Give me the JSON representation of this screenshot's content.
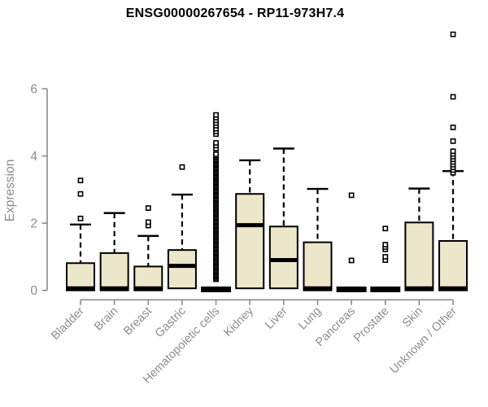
{
  "title": "ENSG00000267654 - RP11-973H7.4",
  "chart_data": {
    "type": "box",
    "title": "ENSG00000267654 - RP11-973H7.4",
    "xlabel": "",
    "ylabel": "Expression",
    "ylim": [
      0,
      6
    ],
    "yticks": [
      0,
      2,
      4,
      6
    ],
    "grid": false,
    "legend": "none",
    "categories": [
      "Bladder",
      "Brain",
      "Breast",
      "Gastric",
      "Hematopoietic cells",
      "Kidney",
      "Liver",
      "Lung",
      "Pancreas",
      "Prostate",
      "Skin",
      "Unknown / Other"
    ],
    "series": [
      {
        "category": "Bladder",
        "q1": 0,
        "median": 0.06,
        "q3": 0.81,
        "whisker_low": 0,
        "whisker_high": 1.96,
        "outliers": [
          2.14,
          2.87,
          3.27
        ]
      },
      {
        "category": "Brain",
        "q1": 0,
        "median": 0.06,
        "q3": 1.11,
        "whisker_low": 0,
        "whisker_high": 2.3,
        "outliers": []
      },
      {
        "category": "Breast",
        "q1": 0,
        "median": 0.06,
        "q3": 0.71,
        "whisker_low": 0,
        "whisker_high": 1.62,
        "outliers": [
          1.93,
          2.03,
          2.45
        ]
      },
      {
        "category": "Gastric",
        "q1": 0.06,
        "median": 0.73,
        "q3": 1.2,
        "whisker_low": 0.06,
        "whisker_high": 2.85,
        "outliers": [
          3.67
        ]
      },
      {
        "category": "Hematopoietic cells",
        "q1": 0,
        "median": 0,
        "q3": 0,
        "whisker_low": 0,
        "whisker_high": 0,
        "outliers": [
          4.22,
          4.31,
          4.39,
          4.65,
          4.73,
          4.81,
          4.9,
          4.98,
          5.06,
          5.14,
          5.22
        ],
        "outlier_band": {
          "min": 0.33,
          "max": 4.08,
          "step": 0.04
        }
      },
      {
        "category": "Kidney",
        "q1": 0.06,
        "median": 1.94,
        "q3": 2.87,
        "whisker_low": 0.06,
        "whisker_high": 3.87,
        "outliers": []
      },
      {
        "category": "Liver",
        "q1": 0.06,
        "median": 0.9,
        "q3": 1.9,
        "whisker_low": 0.06,
        "whisker_high": 4.22,
        "outliers": []
      },
      {
        "category": "Lung",
        "q1": 0,
        "median": 0.06,
        "q3": 1.43,
        "whisker_low": 0,
        "whisker_high": 3.02,
        "outliers": []
      },
      {
        "category": "Pancreas",
        "q1": 0,
        "median": 0,
        "q3": 0,
        "whisker_low": 0,
        "whisker_high": 0,
        "outliers": [
          0.89,
          2.83
        ]
      },
      {
        "category": "Prostate",
        "q1": 0,
        "median": 0,
        "q3": 0,
        "whisker_low": 0,
        "whisker_high": 0,
        "outliers": [
          0.9,
          1.0,
          1.22,
          1.29,
          1.36,
          1.84
        ]
      },
      {
        "category": "Skin",
        "q1": 0,
        "median": 0.06,
        "q3": 2.02,
        "whisker_low": 0,
        "whisker_high": 3.03,
        "outliers": []
      },
      {
        "category": "Unknown / Other",
        "q1": 0,
        "median": 0.06,
        "q3": 1.47,
        "whisker_low": 0,
        "whisker_high": 3.55,
        "outliers": [
          4.44,
          4.85,
          5.76,
          7.62
        ],
        "outlier_band": {
          "min": 3.5,
          "max": 4.2,
          "step": 0.08
        }
      }
    ],
    "colors": {
      "box_fill": "#ECE6CA",
      "box_border": "#000000",
      "median": "#000000",
      "whisker": "#000000",
      "outlier": "#000000",
      "axis": "#8C8C8C",
      "tick_label": "#8C8C8C",
      "title": "#000000"
    }
  }
}
